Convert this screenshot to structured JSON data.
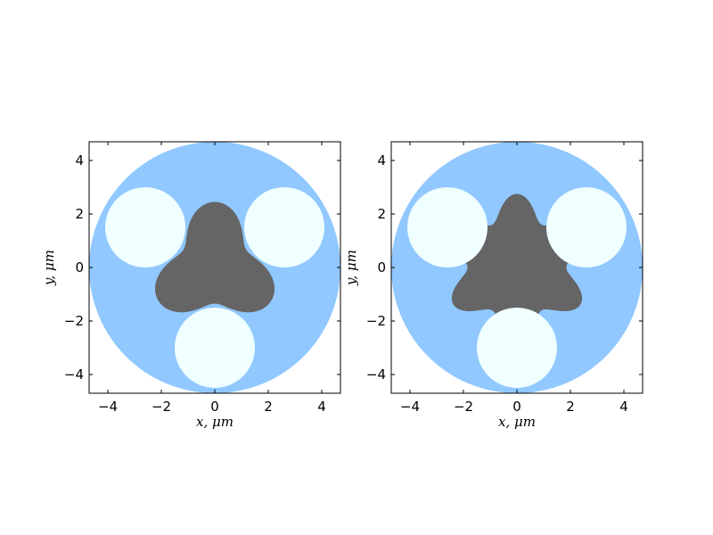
{
  "chart_data": [
    {
      "type": "diagram",
      "title": "",
      "xlabel": "x, μm",
      "ylabel": "y, μm",
      "xlim": [
        -4.7,
        4.7
      ],
      "ylim": [
        -4.7,
        4.7
      ],
      "xticks": [
        -4,
        -2,
        0,
        2,
        4
      ],
      "yticks": [
        -4,
        -2,
        0,
        2,
        4
      ],
      "xtick_labels": [
        "−4",
        "−2",
        "0",
        "2",
        "4"
      ],
      "ytick_labels": [
        "−4",
        "−2",
        "0",
        "2",
        "4"
      ],
      "grid": false,
      "outer_disk": {
        "cx": 0,
        "cy": 0,
        "r": 4.7,
        "color": "#90c8ff"
      },
      "core": {
        "lobes": 3,
        "base_radius": 1.9,
        "lobe_amplitude": 0.55,
        "phase_deg": 90,
        "color": "#656565"
      },
      "holes": [
        {
          "cx": -2.6,
          "cy": 1.5,
          "r": 1.5
        },
        {
          "cx": 2.6,
          "cy": 1.5,
          "r": 1.5
        },
        {
          "cx": 0,
          "cy": -3.0,
          "r": 1.5
        }
      ],
      "hole_color": "#f0ffff"
    },
    {
      "type": "diagram",
      "title": "",
      "xlabel": "x, μm",
      "ylabel": "y, μm",
      "xlim": [
        -4.7,
        4.7
      ],
      "ylim": [
        -4.7,
        4.7
      ],
      "xticks": [
        -4,
        -2,
        0,
        2,
        4
      ],
      "yticks": [
        -4,
        -2,
        0,
        2,
        4
      ],
      "xtick_labels": [
        "−4",
        "−2",
        "0",
        "2",
        "4"
      ],
      "ytick_labels": [
        "−4",
        "−2",
        "0",
        "2",
        "4"
      ],
      "grid": false,
      "outer_disk": {
        "cx": 0,
        "cy": 0,
        "r": 4.7,
        "color": "#90c8ff"
      },
      "core": {
        "lobes": 6,
        "base_radius": 2.3,
        "lobe_amplitude": 0.45,
        "phase_deg": 90,
        "color": "#656565"
      },
      "holes": [
        {
          "cx": -2.6,
          "cy": 1.5,
          "r": 1.5
        },
        {
          "cx": 2.6,
          "cy": 1.5,
          "r": 1.5
        },
        {
          "cx": 0,
          "cy": -3.0,
          "r": 1.5
        }
      ],
      "hole_color": "#f0ffff"
    }
  ]
}
